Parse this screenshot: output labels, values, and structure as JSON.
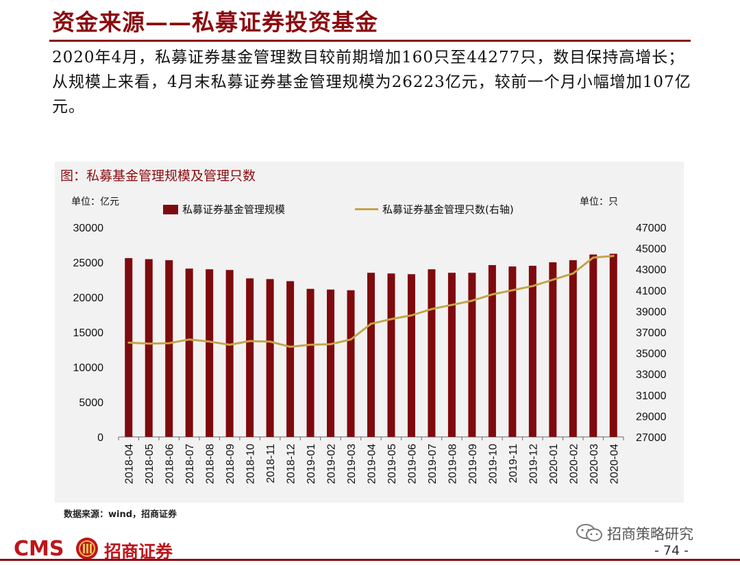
{
  "page": {
    "title": "资金来源——私募证券投资基金",
    "intro": "2020年4月，私募证券基金管理数目较前期增加160只至44277只，数目保持高增长；从规模上来看，4月末私募证券基金管理规模为26223亿元，较前一个月小幅增加107亿元。",
    "figure_title": "图：私募基金管理规模及管理只数",
    "unit_left": "单位：亿元",
    "unit_right": "单位：只",
    "source": "数据来源：wind，招商证券",
    "footer": {
      "logo_latin": "CMS",
      "logo_cn": "招商证券",
      "wechat": "招商策略研究",
      "page_number": "- 74 -"
    }
  },
  "chart_data": {
    "type": "bar",
    "categories": [
      "2018-04",
      "2018-05",
      "2018-06",
      "2018-07",
      "2018-08",
      "2018-09",
      "2018-10",
      "2018-11",
      "2018-12",
      "2019-01",
      "2019-02",
      "2019-03",
      "2019-04",
      "2019-05",
      "2019-06",
      "2019-07",
      "2019-08",
      "2019-09",
      "2019-10",
      "2019-11",
      "2019-12",
      "2020-01",
      "2020-02",
      "2020-03",
      "2020-04"
    ],
    "series": [
      {
        "name": "私募证券基金管理规模",
        "type": "bar",
        "axis": "left",
        "color": "#7f0a0d",
        "values": [
          25600,
          25450,
          25300,
          24100,
          24000,
          23900,
          22700,
          22600,
          22300,
          21200,
          21100,
          21000,
          23500,
          23400,
          23300,
          24000,
          23500,
          23500,
          24600,
          24400,
          24500,
          25000,
          25300,
          26116,
          26223
        ]
      },
      {
        "name": "私募证券基金管理只数(右轴)",
        "type": "line",
        "axis": "right",
        "color": "#c4a44a",
        "values": [
          36000,
          35900,
          35950,
          36300,
          36100,
          35800,
          36150,
          36100,
          35600,
          35800,
          35850,
          36300,
          37800,
          38250,
          38600,
          39200,
          39600,
          40000,
          40600,
          41000,
          41400,
          42000,
          42600,
          44117,
          44277
        ]
      }
    ],
    "y_left": {
      "min": 0,
      "max": 30000,
      "ticks": [
        0,
        5000,
        10000,
        15000,
        20000,
        25000,
        30000
      ]
    },
    "y_right": {
      "min": 27000,
      "max": 47000,
      "ticks": [
        27000,
        29000,
        31000,
        33000,
        35000,
        37000,
        39000,
        41000,
        43000,
        45000,
        47000
      ]
    },
    "legend_position": "top",
    "grid": false
  }
}
